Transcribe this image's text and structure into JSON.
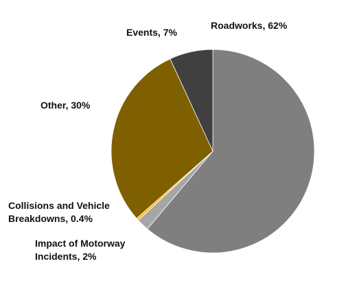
{
  "chart_data": {
    "type": "pie",
    "categories": [
      "Roadworks",
      "Impact of Motorway Incidents",
      "Collisions and Vehicle Breakdowns",
      "Other",
      "Events"
    ],
    "values": [
      62,
      2,
      0.4,
      30,
      7
    ],
    "colors": [
      "#7f7f7f",
      "#a6a6a6",
      "#ffc000",
      "#7f6000",
      "#404040"
    ],
    "labels": {
      "roadworks": "Roadworks, 62%",
      "events": "Events, 7%",
      "other": "Other, 30%",
      "collisions_line1": "Collisions and Vehicle",
      "collisions_line2": "Breakdowns, 0.4%",
      "motorway_line1": "Impact of Motorway",
      "motorway_line2": "Incidents,  2%"
    },
    "legend": "none",
    "title": ""
  }
}
